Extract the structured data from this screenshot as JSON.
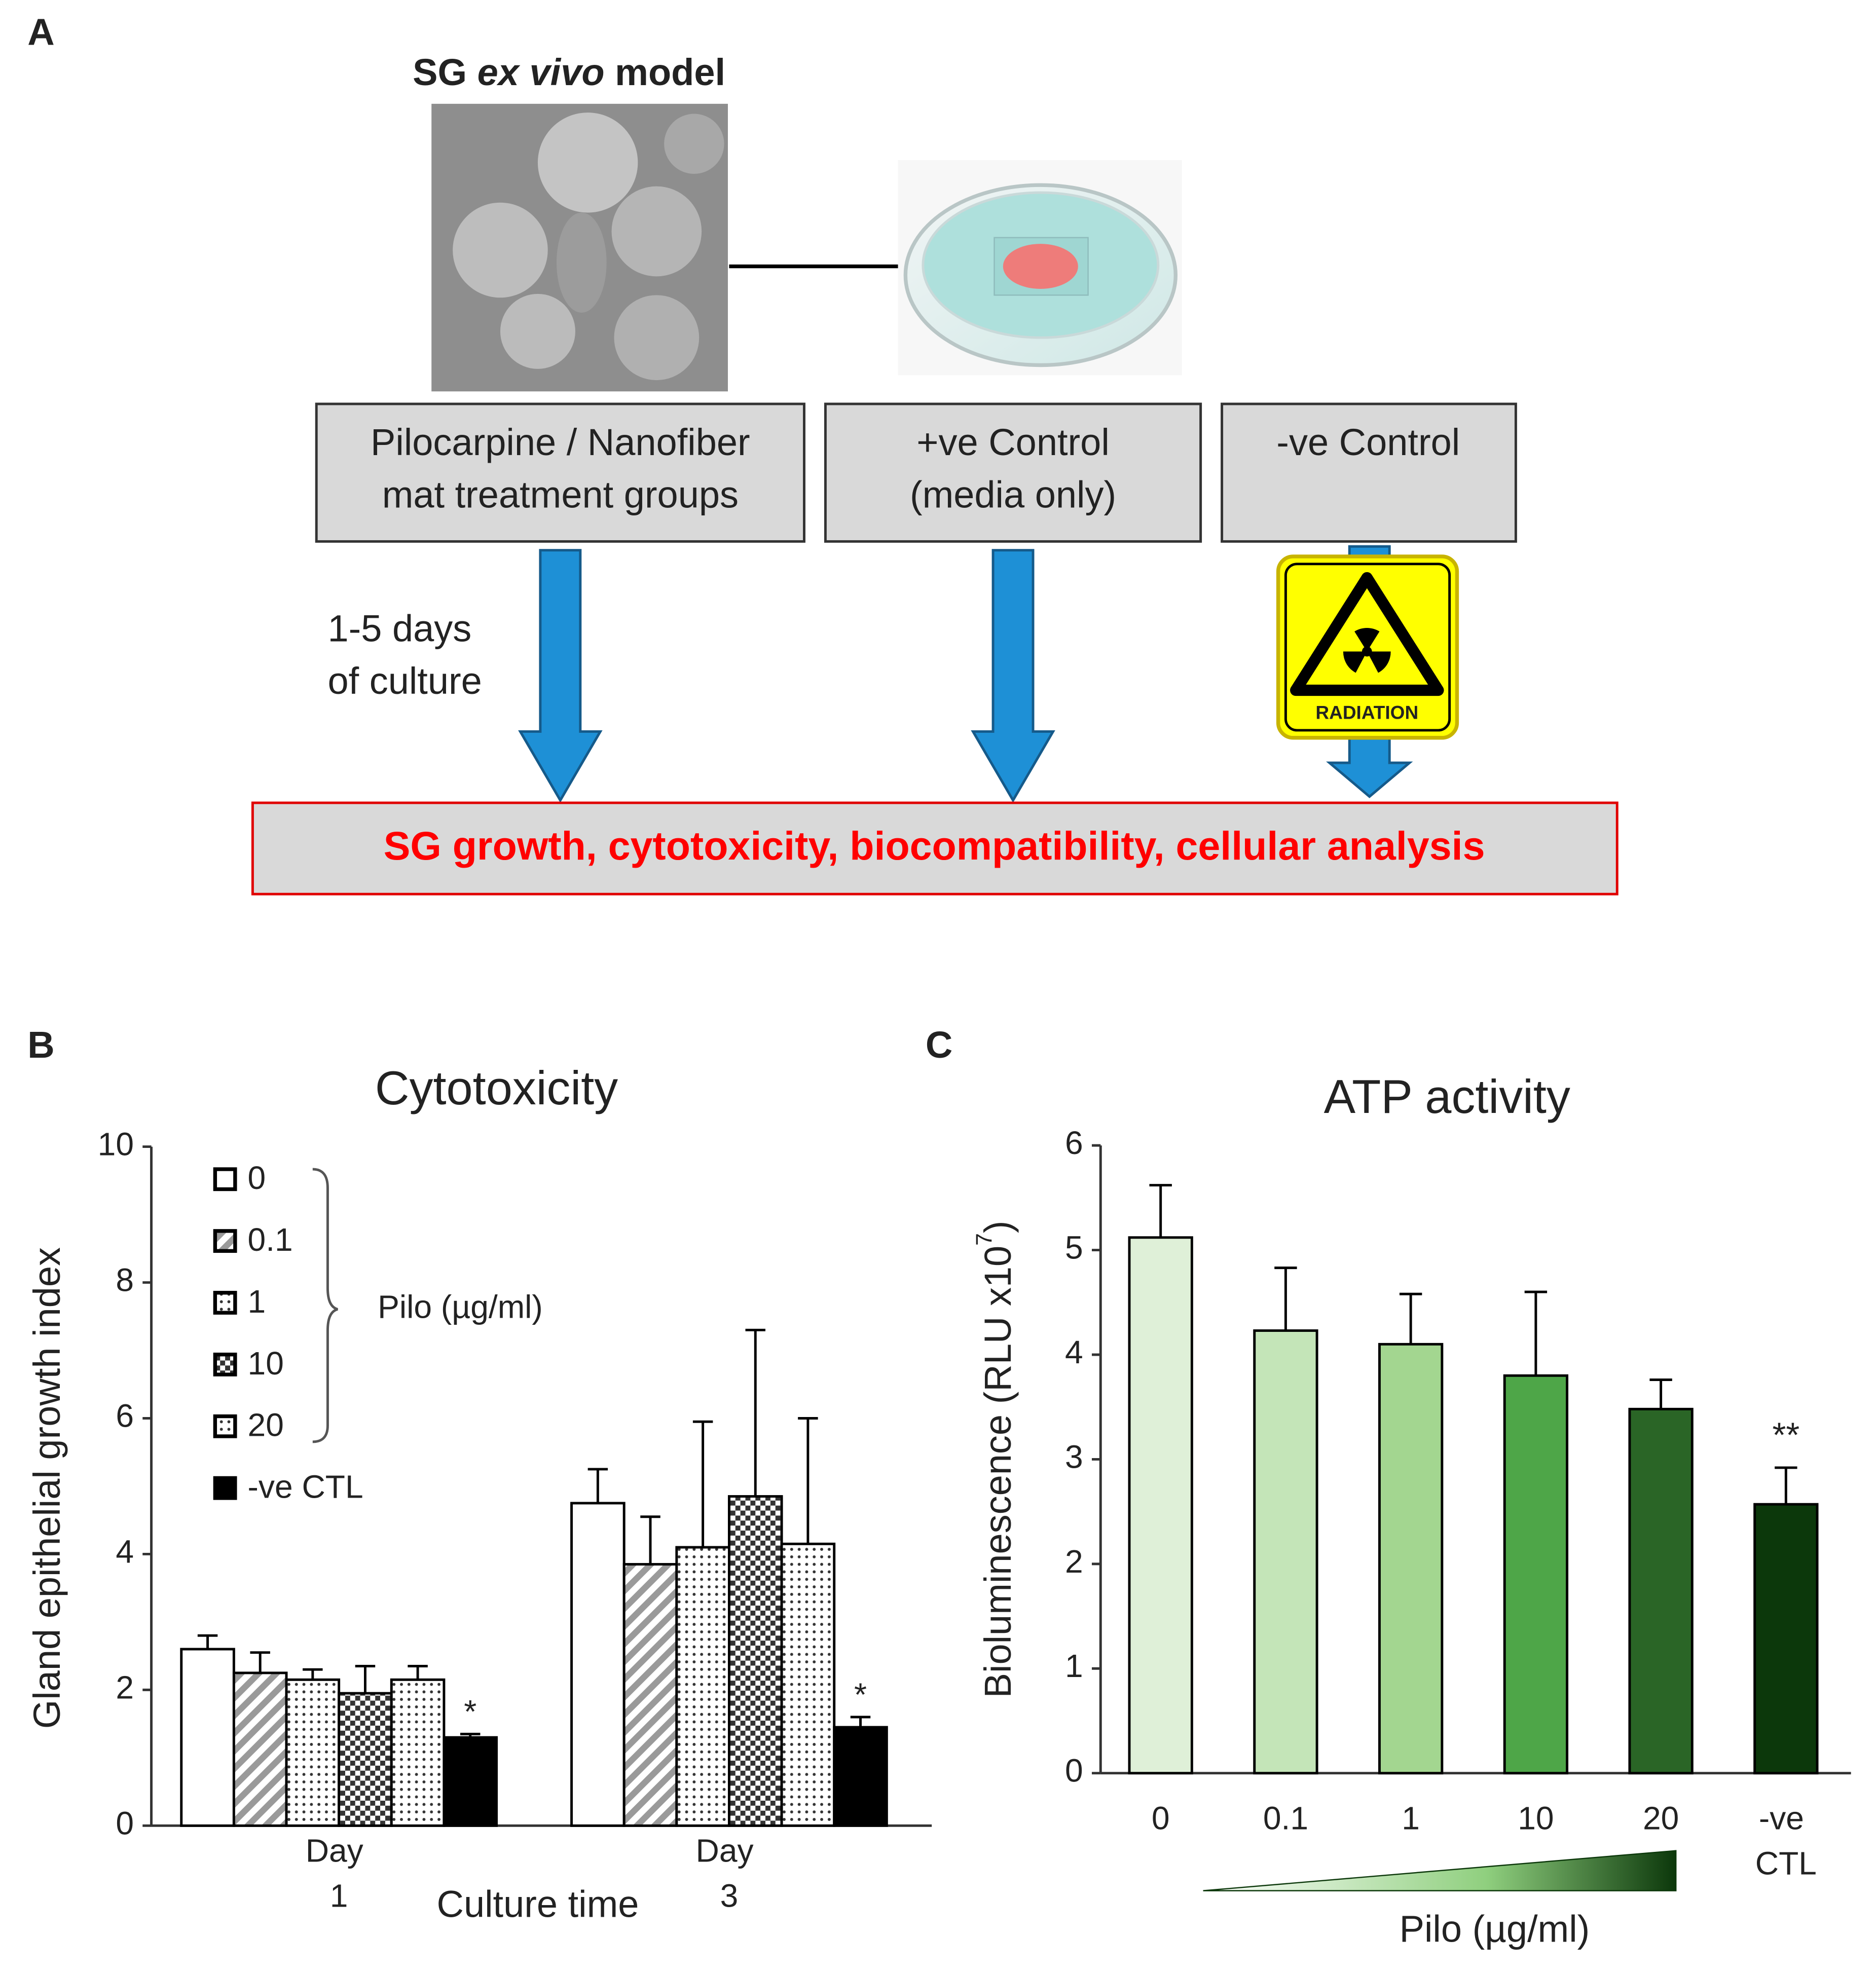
{
  "panel_labels": [
    "A",
    "B",
    "C"
  ],
  "diagram": {
    "title": [
      "SG",
      "ex vivo",
      "model"
    ],
    "boxes": [
      [
        "Pilocarpine / Nanofiber",
        "mat treatment groups"
      ],
      [
        "+ve Control",
        "(media only)"
      ],
      [
        "-ve Control"
      ]
    ],
    "culture_note": [
      "1-5 days",
      "of culture"
    ],
    "sign_label": "RADIATION",
    "outcome": "SG growth, cytotoxicity, biocompatibility, cellular analysis"
  },
  "chart_data": [
    {
      "type": "bar",
      "title": "Cytotoxicity",
      "x_label": "Culture time",
      "y_label": "Gland epithelial growth index",
      "categories": [
        "Day 1",
        "Day 3"
      ],
      "legend_group_label": "Pilo (µg/ml)",
      "series": [
        {
          "name": "0",
          "color": "#ffffff",
          "pattern": "none",
          "values": [
            2.6,
            4.75
          ],
          "errors": [
            0.2,
            0.5
          ]
        },
        {
          "name": "0.1",
          "color": "#9a9a9a",
          "pattern": "hatch",
          "values": [
            2.25,
            3.85
          ],
          "errors": [
            0.3,
            0.7
          ]
        },
        {
          "name": "1",
          "color": "#555555",
          "pattern": "dots",
          "values": [
            2.15,
            4.1
          ],
          "errors": [
            0.15,
            1.85
          ]
        },
        {
          "name": "10",
          "color": "#333333",
          "pattern": "checker",
          "values": [
            1.95,
            4.85
          ],
          "errors": [
            0.4,
            2.45
          ]
        },
        {
          "name": "20",
          "color": "#555555",
          "pattern": "dots",
          "values": [
            2.15,
            4.15
          ],
          "errors": [
            0.2,
            1.85
          ]
        },
        {
          "name": "-ve CTL",
          "color": "#000000",
          "pattern": "none",
          "values": [
            1.3,
            1.45
          ],
          "errors": [
            0.05,
            0.15
          ],
          "significance": [
            "*",
            "*"
          ]
        }
      ],
      "ylim": [
        0,
        10
      ],
      "yticks": [
        0,
        2,
        4,
        6,
        8,
        10
      ]
    },
    {
      "type": "bar",
      "title": "ATP activity",
      "x_label": "Pilo (µg/ml)",
      "y_label": [
        "Bioluminescence (RLU x10",
        "7",
        ")"
      ],
      "categories": [
        "0",
        "0.1",
        "1",
        "10",
        "20",
        "-ve CTL"
      ],
      "values": [
        5.12,
        4.23,
        4.1,
        3.8,
        3.48,
        2.57
      ],
      "errors": [
        0.5,
        0.6,
        0.48,
        0.8,
        0.28,
        0.35
      ],
      "colors": [
        "#dff0d8",
        "#c4e5b8",
        "#a3d690",
        "#4ea648",
        "#2a6526",
        "#0c380b"
      ],
      "significance": [
        null,
        null,
        null,
        null,
        null,
        "**"
      ],
      "ylim": [
        0,
        6
      ],
      "yticks": [
        0,
        1,
        2,
        3,
        4,
        5,
        6
      ]
    }
  ]
}
